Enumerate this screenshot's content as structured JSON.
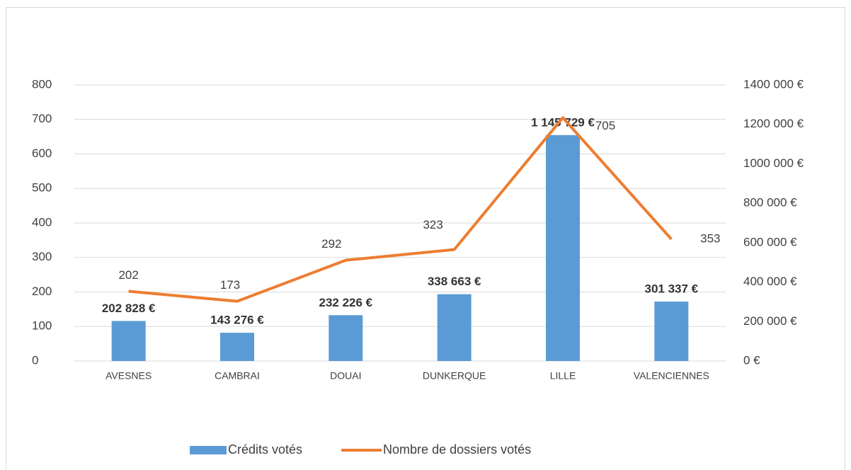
{
  "chart_data": {
    "type": "bar_line",
    "categories": [
      "AVESNES",
      "CAMBRAI",
      "DOUAI",
      "DUNKERQUE",
      "LILLE",
      "VALENCIENNES"
    ],
    "series": [
      {
        "name": "Crédits votés",
        "type": "bar",
        "axis": "y2",
        "color": "#5b9bd5",
        "values": [
          202828,
          143276,
          232226,
          338663,
          1145729,
          301337
        ],
        "value_labels": [
          "202 828 €",
          "143 276 €",
          "232 226 €",
          "338 663 €",
          "1 145 729 €",
          "301 337 €"
        ]
      },
      {
        "name": "Nombre de dossiers votés",
        "type": "line",
        "axis": "y",
        "color": "#ed7d31",
        "values": [
          202,
          173,
          292,
          323,
          705,
          353
        ]
      }
    ],
    "ylim": [
      0,
      800
    ],
    "yticks": [
      0,
      100,
      200,
      300,
      400,
      500,
      600,
      700,
      800
    ],
    "y2lim": [
      0,
      1400000
    ],
    "y2ticks": [
      {
        "value": 0,
        "label": "0 €"
      },
      {
        "value": 200000,
        "label": "200 000 €"
      },
      {
        "value": 400000,
        "label": "400 000 €"
      },
      {
        "value": 600000,
        "label": "600 000 €"
      },
      {
        "value": 800000,
        "label": "800 000 €"
      },
      {
        "value": 1000000,
        "label": "1000 000 €"
      },
      {
        "value": 1200000,
        "label": "1200 000 €"
      },
      {
        "value": 1400000,
        "label": "1400 000 €"
      }
    ],
    "grid": true,
    "legend": "bottom"
  }
}
